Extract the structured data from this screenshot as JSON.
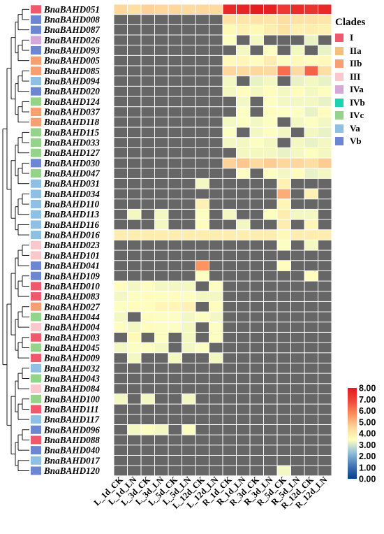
{
  "chart_data": {
    "type": "heatmap",
    "genes": [
      "BnaBAHD051",
      "BnaBAHD008",
      "BnaBAHD087",
      "BnaBAHD026",
      "BnaBAHD093",
      "BnaBAHD005",
      "BnaBAHD085",
      "BnaBAHD094",
      "BnaBAHD020",
      "BnaBAHD124",
      "BnaBAHD037",
      "BnaBAHD118",
      "BnaBAHD115",
      "BnaBAHD033",
      "BnaBAHD127",
      "BnaBAHD030",
      "BnaBAHD047",
      "BnaBAHD031",
      "BnaBAHD034",
      "BnaBAHD110",
      "BnaBAHD113",
      "BnaBAHD116",
      "BnaBAHD016",
      "BnaBAHD023",
      "BnaBAHD101",
      "BnaBAHD041",
      "BnaBAHD109",
      "BnaBAHD010",
      "BnaBAHD083",
      "BnaBAHD027",
      "BnaBAHD044",
      "BnaBAHD004",
      "BnaBAHD003",
      "BnaBAHD045",
      "BnaBAHD009",
      "BnaBAHD032",
      "BnaBAHD043",
      "BnaBAHD084",
      "BnaBAHD100",
      "BnaBAHD111",
      "BnaBAHD117",
      "BnaBAHD096",
      "BnaBAHD088",
      "BnaBAHD040",
      "BnaBAHD017",
      "BnaBAHD120"
    ],
    "gene_clades": [
      "I",
      "Vb",
      "Vb",
      "IVa",
      "Vb",
      "IIb",
      "IIb",
      "Va",
      "Vb",
      "IVc",
      "IIb",
      "IIb",
      "IVc",
      "IVc",
      "IVc",
      "Vb",
      "IVc",
      "Va",
      "Va",
      "Va",
      "Va",
      "Va",
      "Va",
      "III",
      "III",
      "Vb",
      "Vb",
      "I",
      "I",
      "IIb",
      "IVc",
      "III",
      "I",
      "IVc",
      "I",
      "Va",
      "IVc",
      "III",
      "IVc",
      "I",
      "Va",
      "Vb",
      "I",
      "Vb",
      "Va",
      "Vb"
    ],
    "samples": [
      "L_1d_CK",
      "L_1d_LN",
      "L_3d_CK",
      "L_3d_LN",
      "L_5d_CK",
      "L_5d_LN",
      "L_12d_CK",
      "L_12d_LN",
      "R_1d_CK",
      "R_1d_LN",
      "R_3d_CK",
      "R_3d_LN",
      "R_5d_CK",
      "R_5d_LN",
      "R_12d_CK",
      "R_12d_LN"
    ],
    "values": [
      [
        4.5,
        4.3,
        4.6,
        4.5,
        4.5,
        4.4,
        4.5,
        4.4,
        7.6,
        7.7,
        7.9,
        7.8,
        7.2,
        7.5,
        7.3,
        7.6
      ],
      [
        0,
        0,
        0,
        0,
        0,
        0,
        0,
        0,
        4.2,
        4.1,
        4.2,
        4.1,
        4.3,
        4.2,
        4.2,
        4.1
      ],
      [
        0,
        0,
        0,
        0,
        0,
        0,
        0,
        0,
        3.6,
        3.8,
        3.6,
        3.9,
        4.2,
        3.8,
        3.9,
        3.8
      ],
      [
        0,
        0,
        0,
        0,
        0,
        0,
        0,
        0,
        3.4,
        0,
        3.3,
        0,
        0,
        0,
        3.2,
        0
      ],
      [
        0,
        0,
        0,
        0,
        0,
        0,
        0,
        0,
        0,
        3.3,
        0,
        3.4,
        0,
        3.3,
        0,
        3.2
      ],
      [
        0,
        0,
        0,
        0,
        0,
        0,
        0,
        0,
        3.6,
        3.7,
        3.5,
        3.9,
        3.4,
        3.6,
        3.5,
        3.6
      ],
      [
        0,
        0,
        0,
        0,
        0,
        0,
        0,
        0,
        4.5,
        4.4,
        4.5,
        4.4,
        6.2,
        4.4,
        6.4,
        4.3
      ],
      [
        0,
        0,
        0,
        0,
        0,
        0,
        0,
        0,
        3.3,
        0,
        3.2,
        3.3,
        0,
        3.2,
        3.3,
        3.2
      ],
      [
        0,
        0,
        0,
        0,
        0,
        0,
        0,
        0,
        3.3,
        3.5,
        3.3,
        3.5,
        3.3,
        3.5,
        3.3,
        3.4
      ],
      [
        0,
        0,
        0,
        0,
        0,
        0,
        0,
        0,
        0,
        3.3,
        0,
        3.4,
        3.3,
        3.3,
        3.3,
        3.2
      ],
      [
        0,
        0,
        0,
        0,
        0,
        0,
        0,
        0,
        0,
        3.4,
        0,
        3.5,
        3.4,
        3.4,
        3.2,
        3.5
      ],
      [
        0,
        0,
        0,
        0,
        0,
        0,
        0,
        0,
        3.3,
        3.4,
        3.3,
        3.4,
        0,
        3.3,
        3.4,
        3.3
      ],
      [
        0,
        0,
        0,
        0,
        0,
        0,
        0,
        0,
        3.4,
        0,
        3.3,
        3.4,
        3.3,
        0,
        3.3,
        3.2
      ],
      [
        0,
        0,
        0,
        0,
        0,
        0,
        0,
        0,
        3.3,
        3.3,
        3.4,
        3.3,
        0,
        3.3,
        3.2,
        3.3
      ],
      [
        0,
        0,
        0,
        0,
        0,
        0,
        0,
        0,
        0,
        3.3,
        3.3,
        3.3,
        3.2,
        3.3,
        3.4,
        3.3
      ],
      [
        0,
        0,
        0,
        0,
        0,
        0,
        0,
        0,
        4.6,
        4.8,
        4.4,
        4.7,
        4.5,
        4.5,
        4.3,
        4.7
      ],
      [
        0,
        0,
        0,
        0,
        0,
        0,
        0,
        0,
        0,
        3.4,
        0,
        3.4,
        3.3,
        3.5,
        3.2,
        3.3
      ],
      [
        0,
        0,
        0,
        0,
        0,
        0,
        3.3,
        0,
        0,
        0,
        0,
        0,
        3.8,
        0,
        0,
        0
      ],
      [
        0,
        0,
        0,
        0,
        0,
        0,
        0,
        0,
        0,
        0,
        0,
        0,
        5.2,
        0,
        3.8,
        0
      ],
      [
        0,
        0,
        0,
        0,
        0,
        0,
        3.8,
        0,
        0,
        0,
        0,
        0,
        3.7,
        0,
        0,
        0
      ],
      [
        0,
        3.3,
        0,
        3.3,
        0,
        0,
        3.4,
        0,
        3.3,
        0,
        0,
        3.4,
        3.9,
        3.3,
        3.3,
        0
      ],
      [
        0,
        0,
        0,
        3.3,
        0,
        0,
        3.5,
        0,
        0,
        3.3,
        0,
        0,
        3.9,
        0,
        3.7,
        0
      ],
      [
        3.9,
        3.9,
        3.9,
        3.9,
        3.9,
        3.9,
        3.9,
        3.9,
        3.9,
        3.9,
        3.9,
        3.9,
        3.6,
        3.9,
        3.9,
        3.9
      ],
      [
        0,
        0,
        0,
        0,
        0,
        0,
        0,
        0,
        0,
        0,
        0,
        0,
        3.4,
        0,
        3.3,
        0
      ],
      [
        0,
        0,
        0,
        0,
        0,
        0,
        0,
        0,
        0,
        0,
        0,
        0,
        0,
        0,
        0,
        0
      ],
      [
        0,
        0,
        0,
        0,
        0,
        0,
        5.6,
        0,
        0,
        0,
        0,
        0,
        3.5,
        0,
        0,
        0
      ],
      [
        0,
        0,
        0,
        0,
        0,
        0,
        3.4,
        0,
        0,
        0,
        0,
        0,
        0,
        0,
        3.5,
        0
      ],
      [
        3.5,
        3.3,
        3.4,
        3.3,
        3.3,
        3.3,
        0,
        3.4,
        0,
        0,
        0,
        0,
        0,
        0,
        0,
        0
      ],
      [
        3.3,
        3.4,
        3.5,
        3.4,
        3.5,
        3.4,
        3.3,
        3.3,
        0,
        0,
        0,
        0,
        0,
        0,
        0,
        0
      ],
      [
        3.4,
        3.5,
        3.5,
        3.7,
        3.7,
        3.8,
        0,
        3.5,
        0,
        0,
        0,
        0,
        0,
        0,
        0,
        0
      ],
      [
        3.3,
        0,
        3.5,
        3.4,
        3.4,
        3.3,
        3.4,
        3.3,
        0,
        0,
        0,
        0,
        0,
        0,
        0,
        0
      ],
      [
        3.4,
        3.3,
        3.5,
        3.4,
        3.4,
        3.3,
        0,
        3.4,
        0,
        0,
        0,
        0,
        0,
        0,
        0,
        0
      ],
      [
        0,
        3.6,
        0,
        3.4,
        0,
        3.3,
        0,
        3.4,
        0,
        0,
        0,
        0,
        0,
        0,
        0,
        0
      ],
      [
        3.3,
        3.4,
        3.4,
        3.3,
        0,
        3.3,
        3.4,
        0,
        0,
        0,
        0,
        0,
        0,
        0,
        0,
        0
      ],
      [
        0,
        3.3,
        0,
        0,
        3.3,
        0,
        0,
        3.3,
        0,
        0,
        0,
        0,
        0,
        0,
        0,
        0
      ],
      [
        0,
        0,
        0,
        0,
        0,
        0,
        0,
        0,
        0,
        0,
        0,
        0,
        0,
        0,
        0,
        0
      ],
      [
        0,
        0,
        0,
        0,
        0,
        0,
        0,
        0,
        0,
        0,
        0,
        0,
        0,
        0,
        0,
        0
      ],
      [
        0,
        0,
        0,
        0,
        0,
        0,
        0,
        0,
        0,
        0,
        0,
        0,
        0,
        0,
        0,
        0
      ],
      [
        3.3,
        0,
        3.3,
        0,
        0,
        3.3,
        0,
        0,
        0,
        0,
        0,
        0,
        0,
        0,
        0,
        0
      ],
      [
        0,
        0,
        0,
        0,
        0,
        0,
        0,
        0,
        0,
        0,
        0,
        0,
        0,
        0,
        0,
        0
      ],
      [
        0,
        0,
        0,
        0,
        0,
        0,
        0,
        0,
        0,
        0,
        0,
        0,
        0,
        0,
        0,
        0
      ],
      [
        0,
        3.3,
        3.4,
        3.3,
        0,
        3.4,
        0,
        0,
        0,
        0,
        0,
        0,
        0,
        0,
        0,
        0
      ],
      [
        0,
        0,
        0,
        0,
        0,
        0,
        0,
        0,
        0,
        0,
        0,
        0,
        0,
        0,
        0,
        0
      ],
      [
        0,
        0,
        0,
        0,
        0,
        0,
        0,
        0,
        0,
        0,
        0,
        0,
        0,
        0,
        0,
        0
      ],
      [
        0,
        0,
        0,
        0,
        0,
        0,
        0,
        0,
        0,
        0,
        0,
        0,
        0,
        0,
        0,
        0
      ],
      [
        0,
        0,
        0,
        0,
        0,
        0,
        0,
        0,
        0,
        0,
        0,
        0,
        3.3,
        0,
        0,
        0
      ]
    ],
    "color_scale": {
      "min": 0,
      "max": 8,
      "ticks": [
        "0.00",
        "1.00",
        "2.00",
        "3.00",
        "4.00",
        "5.00",
        "6.00",
        "7.00",
        "8.00"
      ],
      "stops": [
        "#053f8c",
        "#4575b4",
        "#91bfdb",
        "#ffffbf",
        "#fdd49a",
        "#fc8d59",
        "#f2453a",
        "#e31a1c"
      ],
      "zero_color": "#666666"
    },
    "clades_legend": {
      "title": "Clades",
      "items": [
        {
          "label": "I",
          "color": "#ed5a6e"
        },
        {
          "label": "IIa",
          "color": "#f5c07b"
        },
        {
          "label": "IIb",
          "color": "#f79e72"
        },
        {
          "label": "III",
          "color": "#f9c8cc"
        },
        {
          "label": "IVa",
          "color": "#d6a8d9"
        },
        {
          "label": "IVb",
          "color": "#1fd1ae"
        },
        {
          "label": "IVc",
          "color": "#95d38a"
        },
        {
          "label": "Va",
          "color": "#8fbfe3"
        },
        {
          "label": "Vb",
          "color": "#6d86d1"
        }
      ]
    },
    "legend_position": "right"
  }
}
